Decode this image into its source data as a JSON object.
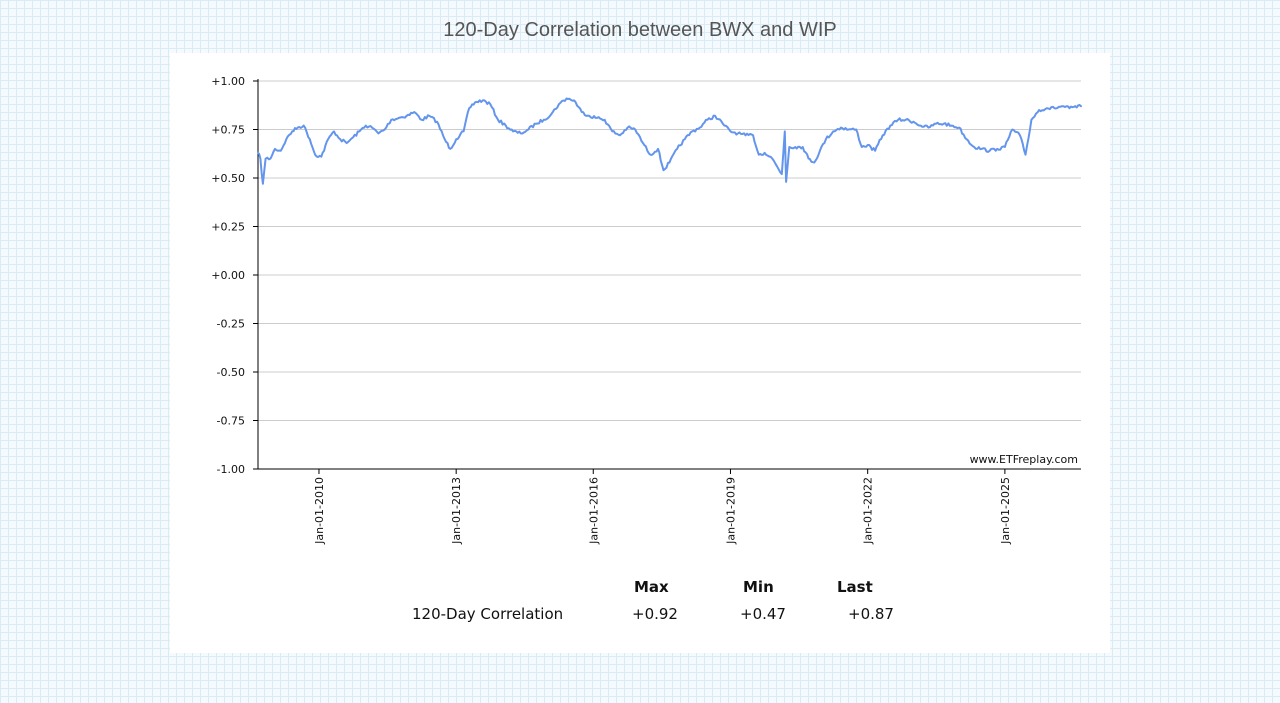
{
  "title": "120-Day Correlation between BWX and WIP",
  "watermark": "www.ETFreplay.com",
  "stats": {
    "headers": [
      "Max",
      "Min",
      "Last"
    ],
    "row_label": "120-Day Correlation",
    "values": [
      "+0.92",
      "+0.47",
      "+0.87"
    ]
  },
  "colors": {
    "line": "#6495ed",
    "grid": "#cccccc",
    "axis": "#000000"
  },
  "chart_data": {
    "type": "line",
    "title": "120-Day Correlation between BWX and WIP",
    "xlabel": "",
    "ylabel": "",
    "ylim": [
      -1.0,
      1.0
    ],
    "y_ticks": [
      "+1.00",
      "+0.75",
      "+0.50",
      "+0.25",
      "+0.00",
      "-0.25",
      "-0.50",
      "-0.75",
      "-1.00"
    ],
    "y_tick_values": [
      1.0,
      0.75,
      0.5,
      0.25,
      0.0,
      -0.25,
      -0.5,
      -0.75,
      -1.0
    ],
    "xlim": [
      "2008-09-01",
      "2026-09-01"
    ],
    "x_ticks": [
      "Jan-01-2010",
      "Jan-01-2013",
      "Jan-01-2016",
      "Jan-01-2019",
      "Jan-01-2022",
      "Jan-01-2025"
    ],
    "x_tick_dates": [
      "2010-01-01",
      "2013-01-01",
      "2016-01-01",
      "2019-01-01",
      "2022-01-01",
      "2025-01-01"
    ],
    "grid": true,
    "series": [
      {
        "color": "#6495ed",
        "points": [
          [
            "2008-09-01",
            0.63
          ],
          [
            "2008-09-20",
            0.6
          ],
          [
            "2008-10-10",
            0.47
          ],
          [
            "2008-11-01",
            0.6
          ],
          [
            "2008-12-10",
            0.6
          ],
          [
            "2009-01-15",
            0.65
          ],
          [
            "2009-03-01",
            0.64
          ],
          [
            "2009-04-15",
            0.7
          ],
          [
            "2009-06-01",
            0.74
          ],
          [
            "2009-07-15",
            0.76
          ],
          [
            "2009-09-01",
            0.77
          ],
          [
            "2009-10-20",
            0.7
          ],
          [
            "2009-12-01",
            0.62
          ],
          [
            "2010-01-20",
            0.61
          ],
          [
            "2010-03-15",
            0.7
          ],
          [
            "2010-05-01",
            0.74
          ],
          [
            "2010-06-20",
            0.7
          ],
          [
            "2010-08-10",
            0.68
          ],
          [
            "2010-10-01",
            0.71
          ],
          [
            "2010-11-20",
            0.74
          ],
          [
            "2011-01-10",
            0.77
          ],
          [
            "2011-03-01",
            0.76
          ],
          [
            "2011-04-20",
            0.73
          ],
          [
            "2011-06-10",
            0.75
          ],
          [
            "2011-08-01",
            0.8
          ],
          [
            "2011-10-01",
            0.81
          ],
          [
            "2011-12-01",
            0.82
          ],
          [
            "2012-02-01",
            0.84
          ],
          [
            "2012-04-01",
            0.8
          ],
          [
            "2012-06-01",
            0.82
          ],
          [
            "2012-08-01",
            0.79
          ],
          [
            "2012-10-01",
            0.7
          ],
          [
            "2012-11-15",
            0.65
          ],
          [
            "2013-01-01",
            0.7
          ],
          [
            "2013-03-01",
            0.74
          ],
          [
            "2013-04-15",
            0.86
          ],
          [
            "2013-06-01",
            0.89
          ],
          [
            "2013-08-01",
            0.9
          ],
          [
            "2013-10-01",
            0.88
          ],
          [
            "2013-12-01",
            0.8
          ],
          [
            "2014-02-01",
            0.77
          ],
          [
            "2014-04-01",
            0.74
          ],
          [
            "2014-06-01",
            0.73
          ],
          [
            "2014-08-01",
            0.75
          ],
          [
            "2014-10-01",
            0.78
          ],
          [
            "2014-12-01",
            0.8
          ],
          [
            "2015-02-01",
            0.83
          ],
          [
            "2015-04-01",
            0.88
          ],
          [
            "2015-06-01",
            0.91
          ],
          [
            "2015-08-01",
            0.9
          ],
          [
            "2015-10-01",
            0.84
          ],
          [
            "2015-12-01",
            0.82
          ],
          [
            "2016-02-01",
            0.81
          ],
          [
            "2016-04-01",
            0.8
          ],
          [
            "2016-06-01",
            0.74
          ],
          [
            "2016-08-01",
            0.72
          ],
          [
            "2016-10-01",
            0.76
          ],
          [
            "2016-12-01",
            0.75
          ],
          [
            "2017-02-01",
            0.68
          ],
          [
            "2017-04-01",
            0.62
          ],
          [
            "2017-06-01",
            0.65
          ],
          [
            "2017-07-15",
            0.54
          ],
          [
            "2017-09-01",
            0.58
          ],
          [
            "2017-11-01",
            0.65
          ],
          [
            "2018-01-01",
            0.7
          ],
          [
            "2018-03-01",
            0.74
          ],
          [
            "2018-05-01",
            0.76
          ],
          [
            "2018-07-01",
            0.8
          ],
          [
            "2018-09-01",
            0.82
          ],
          [
            "2018-11-01",
            0.78
          ],
          [
            "2019-01-01",
            0.74
          ],
          [
            "2019-03-01",
            0.73
          ],
          [
            "2019-05-01",
            0.72
          ],
          [
            "2019-07-01",
            0.72
          ],
          [
            "2019-08-15",
            0.62
          ],
          [
            "2019-10-01",
            0.63
          ],
          [
            "2019-12-01",
            0.6
          ],
          [
            "2020-02-15",
            0.52
          ],
          [
            "2020-03-10",
            0.74
          ],
          [
            "2020-03-20",
            0.48
          ],
          [
            "2020-04-15",
            0.66
          ],
          [
            "2020-06-01",
            0.66
          ],
          [
            "2020-08-01",
            0.66
          ],
          [
            "2020-09-15",
            0.6
          ],
          [
            "2020-11-01",
            0.58
          ],
          [
            "2020-12-15",
            0.64
          ],
          [
            "2021-02-01",
            0.7
          ],
          [
            "2021-04-01",
            0.74
          ],
          [
            "2021-06-01",
            0.76
          ],
          [
            "2021-08-01",
            0.75
          ],
          [
            "2021-10-01",
            0.75
          ],
          [
            "2021-11-15",
            0.66
          ],
          [
            "2022-01-01",
            0.67
          ],
          [
            "2022-03-01",
            0.64
          ],
          [
            "2022-05-01",
            0.72
          ],
          [
            "2022-07-01",
            0.77
          ],
          [
            "2022-09-01",
            0.8
          ],
          [
            "2022-11-01",
            0.8
          ],
          [
            "2023-01-01",
            0.79
          ],
          [
            "2023-03-01",
            0.77
          ],
          [
            "2023-05-01",
            0.76
          ],
          [
            "2023-07-01",
            0.78
          ],
          [
            "2023-09-01",
            0.78
          ],
          [
            "2023-11-01",
            0.77
          ],
          [
            "2024-01-01",
            0.76
          ],
          [
            "2024-03-01",
            0.7
          ],
          [
            "2024-05-01",
            0.66
          ],
          [
            "2024-07-01",
            0.65
          ],
          [
            "2024-09-01",
            0.64
          ],
          [
            "2024-11-01",
            0.65
          ],
          [
            "2025-01-01",
            0.66
          ],
          [
            "2025-03-01",
            0.75
          ],
          [
            "2025-05-01",
            0.72
          ],
          [
            "2025-06-15",
            0.62
          ],
          [
            "2025-08-01",
            0.8
          ],
          [
            "2025-10-01",
            0.85
          ],
          [
            "2025-12-01",
            0.86
          ],
          [
            "2026-02-01",
            0.86
          ],
          [
            "2026-04-01",
            0.87
          ],
          [
            "2026-06-01",
            0.86
          ],
          [
            "2026-09-01",
            0.87
          ]
        ]
      }
    ]
  }
}
